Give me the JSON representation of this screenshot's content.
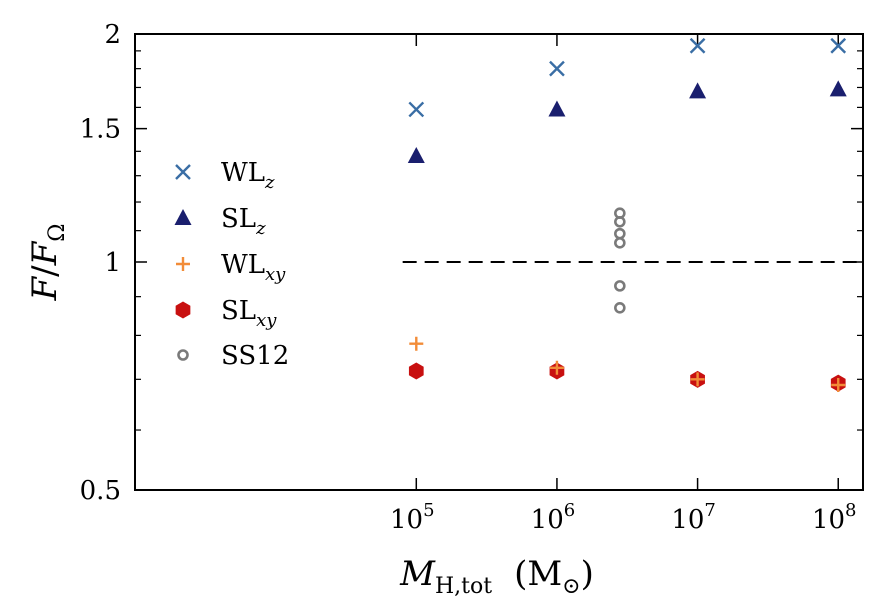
{
  "chart_data": {
    "type": "scatter",
    "x_scale": "log",
    "y_scale": "log",
    "xlim": [
      1000,
      150000000
    ],
    "ylim": [
      0.5,
      2
    ],
    "x_ticks": [
      {
        "value": 100000,
        "base": "10",
        "exp": "5"
      },
      {
        "value": 1000000,
        "base": "10",
        "exp": "6"
      },
      {
        "value": 10000000,
        "base": "10",
        "exp": "7"
      },
      {
        "value": 100000000,
        "base": "10",
        "exp": "8"
      }
    ],
    "y_ticks": [
      {
        "value": 0.5,
        "label": "0.5"
      },
      {
        "value": 1,
        "label": "1"
      },
      {
        "value": 1.5,
        "label": "1.5"
      },
      {
        "value": 2,
        "label": "2"
      }
    ],
    "y_minor_ticks": [
      0.6,
      0.7,
      0.8,
      0.9,
      1.1,
      1.2,
      1.3,
      1.4,
      1.6,
      1.7,
      1.8,
      1.9
    ],
    "xlabel": {
      "main": "M",
      "sub": "H,tot",
      "unit_open": "(M",
      "unit_sub": "⊙",
      "unit_close": ")"
    },
    "ylabel": {
      "main": "F",
      "slash": "/",
      "main2": "F",
      "sub": "Ω"
    },
    "reference_line": {
      "y": 1,
      "x_start": 80000,
      "x_end": 150000000,
      "style": "dashed"
    },
    "series": [
      {
        "name": "WL",
        "sub": "z",
        "marker": "x",
        "color": "#3a6ea5",
        "x": [
          100000,
          1000000,
          10000000,
          100000000
        ],
        "y": [
          1.59,
          1.8,
          1.93,
          1.93
        ]
      },
      {
        "name": "SL",
        "sub": "z",
        "marker": "triangle",
        "color": "#1a1f6e",
        "x": [
          100000,
          1000000,
          10000000,
          100000000
        ],
        "y": [
          1.38,
          1.59,
          1.68,
          1.69
        ]
      },
      {
        "name": "WL",
        "sub": "xy",
        "marker": "plus",
        "color": "#f28c38",
        "x": [
          100000,
          1000000,
          10000000,
          100000000
        ],
        "y": [
          0.78,
          0.725,
          0.7,
          0.688
        ]
      },
      {
        "name": "SL",
        "sub": "xy",
        "marker": "hexagon",
        "color": "#c81010",
        "x": [
          100000,
          1000000,
          10000000,
          100000000
        ],
        "y": [
          0.718,
          0.718,
          0.7,
          0.692
        ]
      },
      {
        "name": "SS12",
        "sub": "",
        "marker": "circle",
        "color": "#7a7a7a",
        "x": [
          2800000,
          2800000,
          2800000,
          2800000,
          2800000,
          2800000
        ],
        "y": [
          1.16,
          1.13,
          1.09,
          1.06,
          0.93,
          0.87
        ]
      }
    ]
  }
}
